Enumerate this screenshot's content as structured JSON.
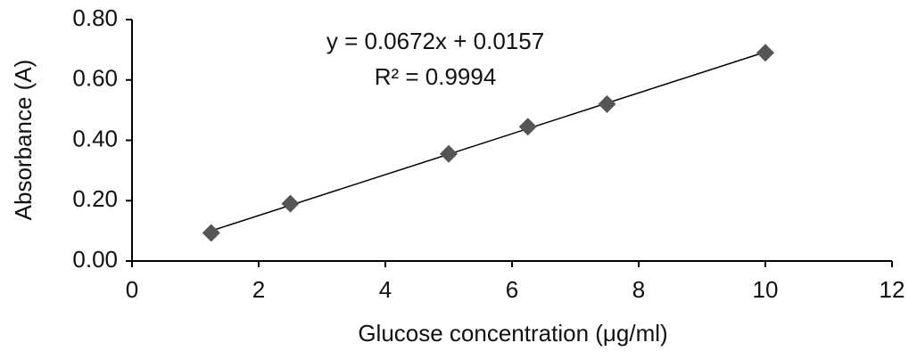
{
  "chart_data": {
    "type": "scatter",
    "x_label": "Glucose concentration (μg/ml)",
    "y_label": "Absorbance (A)",
    "annotations": [
      "y = 0.0672x + 0.0157",
      "R² = 0.9994"
    ],
    "series": [
      {
        "color": "#555555",
        "x": [
          1.25,
          2.5,
          5,
          6.25,
          7.5,
          10
        ],
        "values": [
          0.093,
          0.19,
          0.355,
          0.445,
          0.52,
          0.69
        ]
      }
    ],
    "trendline": true,
    "xlim": [
      0,
      12
    ],
    "xticks": [
      0,
      2,
      4,
      6,
      8,
      10,
      12
    ],
    "ylim": [
      0,
      0.8
    ],
    "yticks": [
      {
        "value": 0,
        "label": "0.00"
      },
      {
        "value": 0.2,
        "label": "0.20"
      },
      {
        "value": 0.4,
        "label": "0.40"
      },
      {
        "value": 0.6,
        "label": "0.60"
      },
      {
        "value": 0.8,
        "label": "0.80"
      }
    ]
  }
}
